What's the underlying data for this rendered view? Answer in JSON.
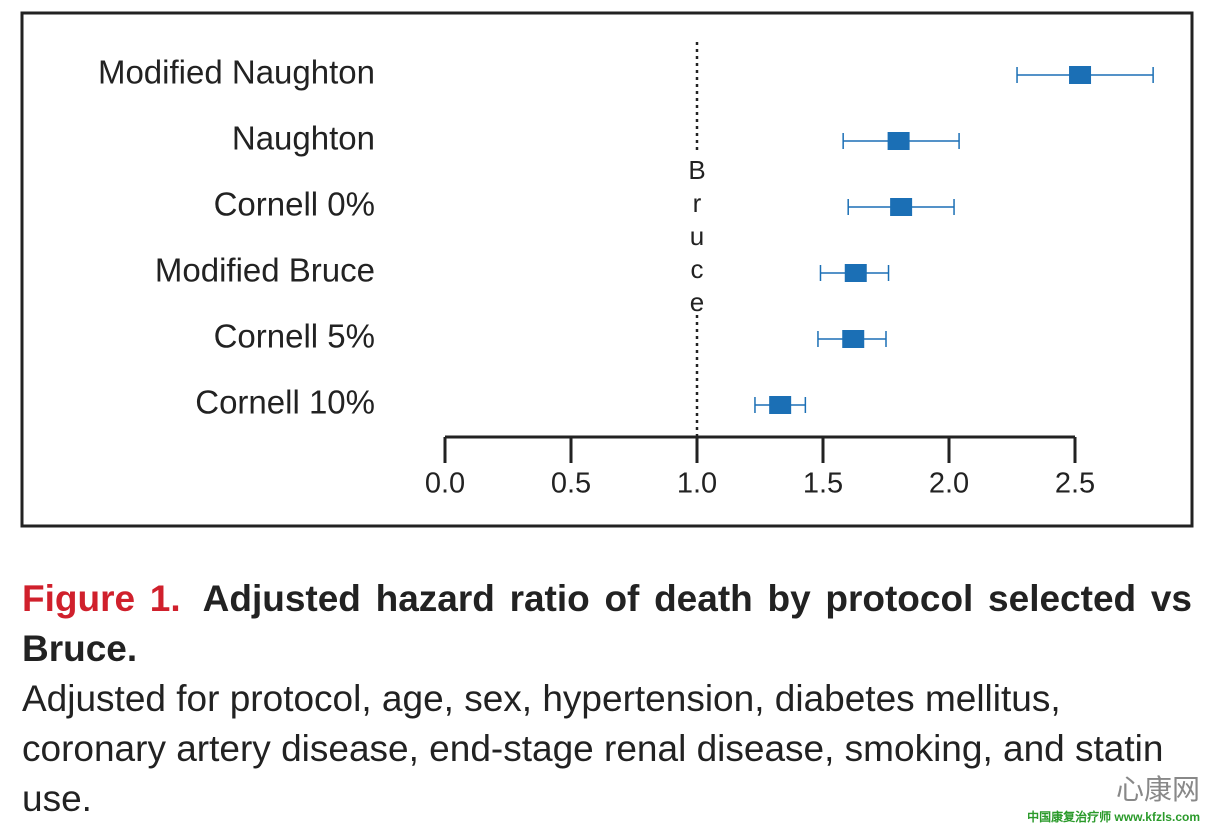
{
  "chart_data": {
    "type": "forest",
    "categories": [
      "Modified Naughton",
      "Naughton",
      "Cornell 0%",
      "Modified Bruce",
      "Cornell 5%",
      "Cornell 10%"
    ],
    "values": [
      2.52,
      1.8,
      1.81,
      1.63,
      1.62,
      1.33
    ],
    "lower": [
      2.27,
      1.58,
      1.6,
      1.49,
      1.48,
      1.23
    ],
    "upper": [
      2.81,
      2.04,
      2.02,
      1.76,
      1.75,
      1.43
    ],
    "color": "#1b6fb5",
    "xlim": [
      0,
      2.5
    ],
    "xticks": [
      {
        "value": 0,
        "label": "0.0"
      },
      0.5,
      {
        "value": 1,
        "label": "1.0"
      },
      1.5,
      {
        "value": 2,
        "label": "2.0"
      },
      2.5
    ],
    "reference": {
      "value": 1,
      "label": "Bruce"
    }
  },
  "caption": {
    "number": "Figure 1.",
    "title": "Adjusted hazard ratio of death by protocol selected vs Bruce.",
    "body": "Adjusted for protocol, age, sex, hypertension, diabetes mellitus, coronary artery disease, end-stage renal disease, smoking, and statin use."
  },
  "watermark": {
    "name": "心康网",
    "site": "中国康复治疗师 www.kfzls.com"
  }
}
